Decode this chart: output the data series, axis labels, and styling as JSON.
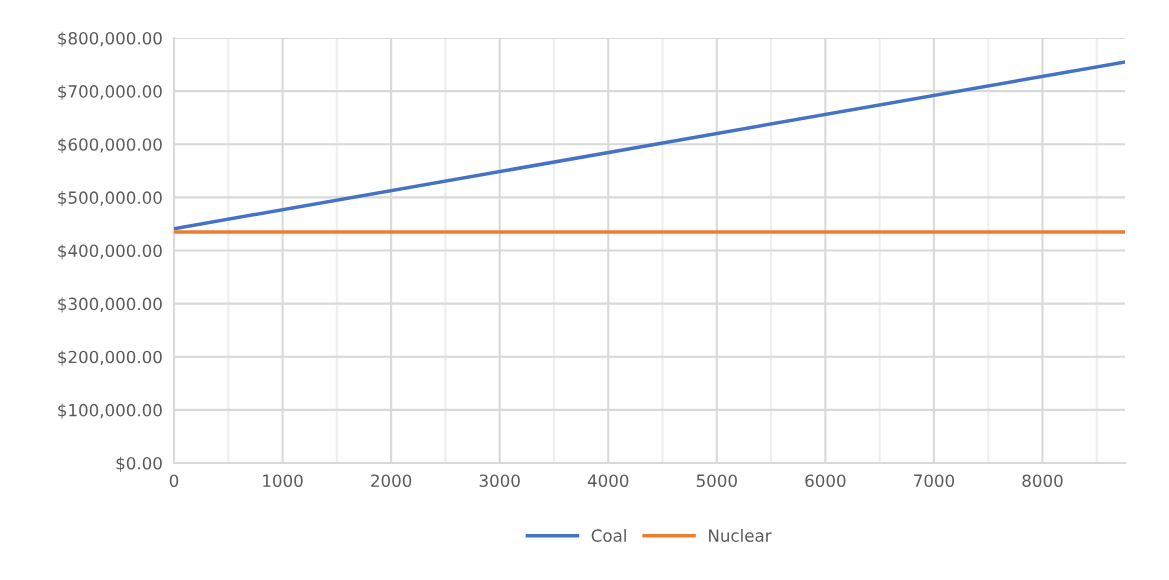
{
  "chart_data": {
    "type": "line",
    "x": [
      0,
      8760
    ],
    "series": [
      {
        "name": "Coal",
        "color": "#4472c4",
        "values": [
          441000,
          755000
        ]
      },
      {
        "name": "Nuclear",
        "color": "#ed7d31",
        "values": [
          435000,
          435000
        ]
      }
    ],
    "xlim": [
      0,
      8760
    ],
    "xticks": [
      0,
      {
        "value": 500,
        "label": null
      },
      1000,
      {
        "value": 1500,
        "label": null
      },
      2000,
      {
        "value": 2500,
        "label": null
      },
      3000,
      {
        "value": 3500,
        "label": null
      },
      4000,
      {
        "value": 4500,
        "label": null
      },
      5000,
      {
        "value": 5500,
        "label": null
      },
      6000,
      {
        "value": 6500,
        "label": null
      },
      7000,
      {
        "value": 7500,
        "label": null
      },
      8000,
      {
        "value": 8500,
        "label": null
      }
    ],
    "ylim": [
      0,
      800000
    ],
    "yticks": [
      {
        "value": 0,
        "label": "$0.00"
      },
      {
        "value": 100000,
        "label": "$100,000.00"
      },
      {
        "value": 200000,
        "label": "$200,000.00"
      },
      {
        "value": 300000,
        "label": "$300,000.00"
      },
      {
        "value": 400000,
        "label": "$400,000.00"
      },
      {
        "value": 500000,
        "label": "$500,000.00"
      },
      {
        "value": 600000,
        "label": "$600,000.00"
      },
      {
        "value": 700000,
        "label": "$700,000.00"
      },
      {
        "value": 800000,
        "label": "$800,000.00"
      }
    ],
    "grid": true,
    "legend": "bottom",
    "marker": "none",
    "line_style": "solid"
  }
}
